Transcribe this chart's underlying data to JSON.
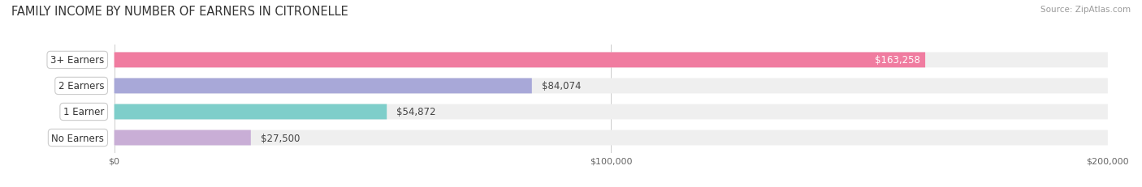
{
  "title": "FAMILY INCOME BY NUMBER OF EARNERS IN CITRONELLE",
  "source": "Source: ZipAtlas.com",
  "categories": [
    "No Earners",
    "1 Earner",
    "2 Earners",
    "3+ Earners"
  ],
  "values": [
    27500,
    54872,
    84074,
    163258
  ],
  "bar_colors": [
    "#c9aed6",
    "#7ececa",
    "#a8a8d8",
    "#f07ca0"
  ],
  "bar_bg_color": "#efefef",
  "label_colors": [
    "#444444",
    "#444444",
    "#444444",
    "#ffffff"
  ],
  "xlim": [
    0,
    200000
  ],
  "xticks": [
    0,
    100000,
    200000
  ],
  "xtick_labels": [
    "$0",
    "$100,000",
    "$200,000"
  ],
  "background_color": "#ffffff",
  "title_fontsize": 10.5,
  "bar_height": 0.58,
  "label_fontsize": 8.5,
  "cat_fontsize": 8.5
}
